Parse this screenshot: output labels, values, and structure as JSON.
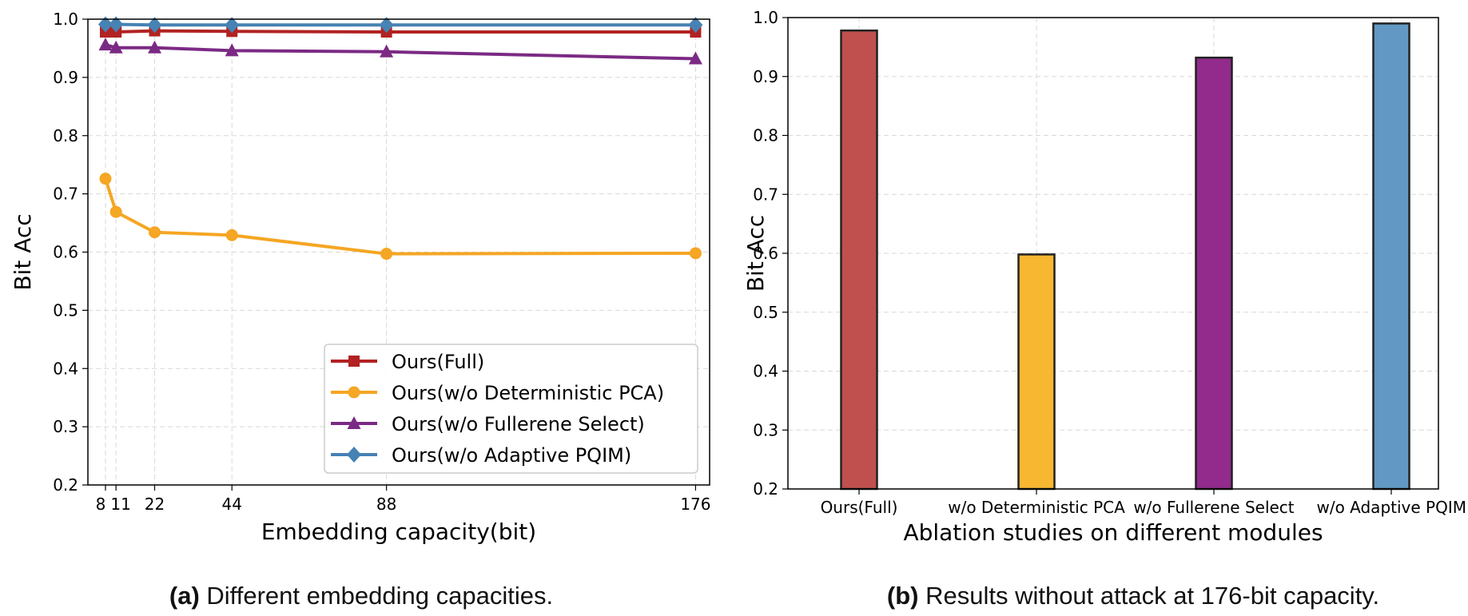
{
  "chart_data": [
    {
      "type": "line",
      "xlabel": "Embedding capacity(bit)",
      "ylabel": "Bit Acc",
      "x": [
        8,
        11,
        22,
        44,
        88,
        176
      ],
      "xticks": [
        8,
        11,
        22,
        44,
        88,
        176
      ],
      "xtick_labels": [
        "8",
        "11",
        "22",
        "44",
        "88",
        "176"
      ],
      "xlim": [
        3,
        180
      ],
      "ylim": [
        0.2,
        1.0
      ],
      "yticks": [
        "0.2",
        "0.3",
        "0.4",
        "0.5",
        "0.6",
        "0.7",
        "0.8",
        "0.9",
        "1.0"
      ],
      "grid": true,
      "legend_position": "lower-right",
      "series": [
        {
          "name": "Ours(Full)",
          "color": "#b22222",
          "marker": "square",
          "values": [
            0.978,
            0.978,
            0.98,
            0.979,
            0.978,
            0.978
          ]
        },
        {
          "name": "Ours(w/o Deterministic PCA)",
          "color": "#f5a623",
          "marker": "circle",
          "values": [
            0.726,
            0.669,
            0.634,
            0.629,
            0.597,
            0.598
          ]
        },
        {
          "name": "Ours(w/o Fullerene Select)",
          "color": "#7b2a84",
          "marker": "triangle",
          "values": [
            0.956,
            0.951,
            0.951,
            0.946,
            0.944,
            0.932
          ]
        },
        {
          "name": "Ours(w/o Adaptive PQIM)",
          "color": "#4682b4",
          "marker": "diamond",
          "values": [
            0.991,
            0.991,
            0.99,
            0.99,
            0.99,
            0.99
          ]
        }
      ]
    },
    {
      "type": "bar",
      "xlabel": "Ablation studies on different modules",
      "ylabel": "Bit Acc",
      "categories": [
        "Ours(Full)",
        "w/o Deterministic PCA",
        "w/o Fullerene Select",
        "w/o Adaptive PQIM"
      ],
      "values": [
        0.978,
        0.598,
        0.932,
        0.99
      ],
      "colors": [
        "#c0504d",
        "#f7b731",
        "#922b8c",
        "#6199c4"
      ],
      "ylim": [
        0.2,
        1.0
      ],
      "yticks": [
        "0.2",
        "0.3",
        "0.4",
        "0.5",
        "0.6",
        "0.7",
        "0.8",
        "0.9",
        "1.0"
      ],
      "grid": true
    }
  ],
  "captions": {
    "a_label": "(a)",
    "a_text": " Different embedding capacities.",
    "b_label": "(b)",
    "b_text": " Results without attack at 176-bit capacity."
  }
}
